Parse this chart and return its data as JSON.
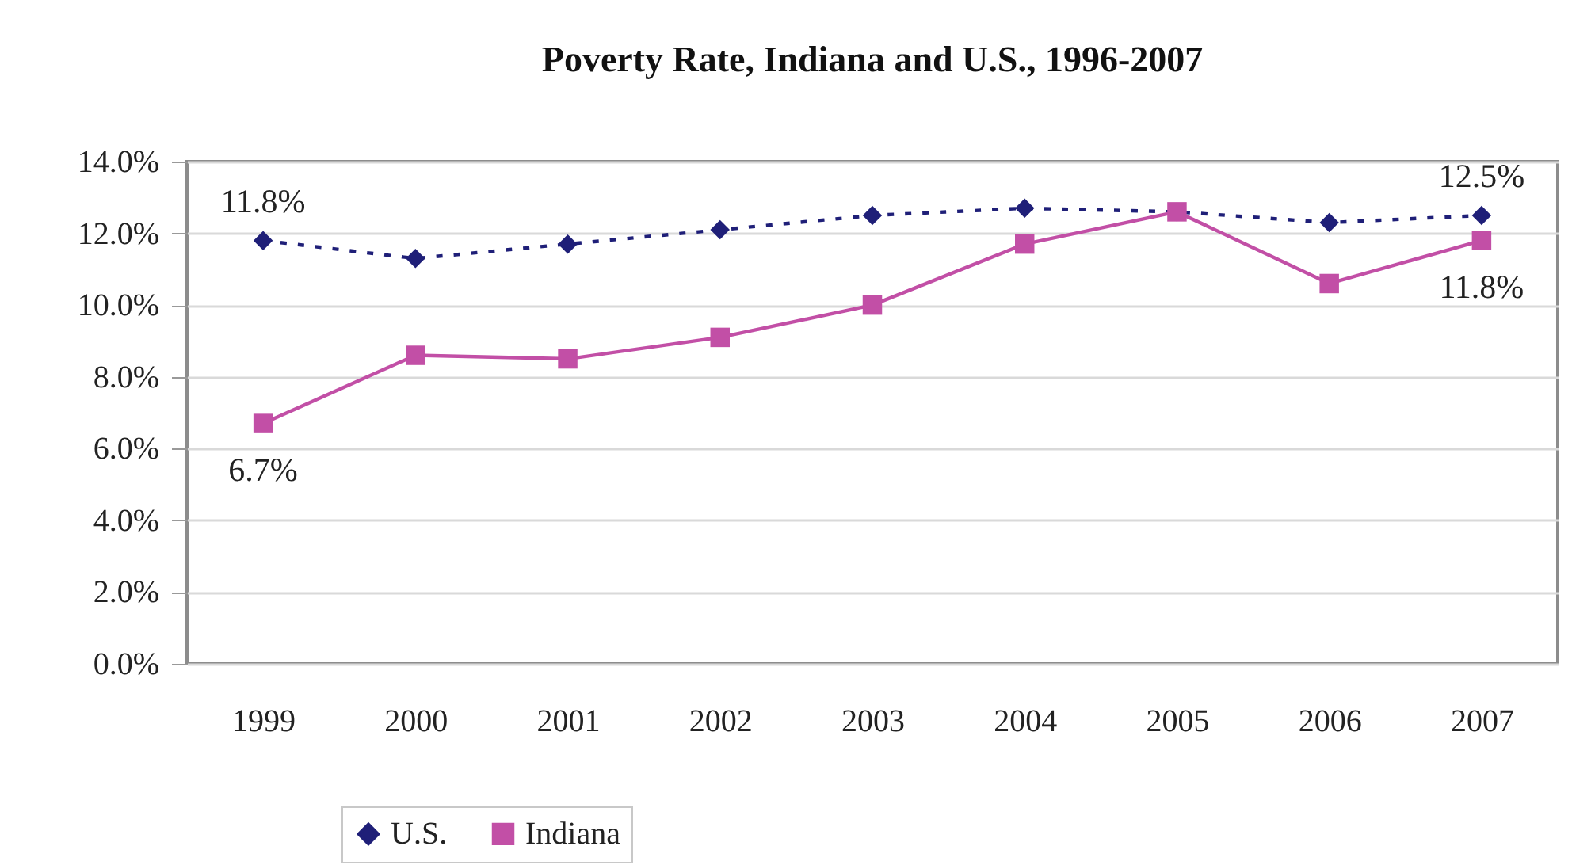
{
  "chart_data": {
    "type": "line",
    "title": "Poverty Rate, Indiana and U.S., 1996-2007",
    "categories": [
      "1999",
      "2000",
      "2001",
      "2002",
      "2003",
      "2004",
      "2005",
      "2006",
      "2007"
    ],
    "series": [
      {
        "name": "U.S.",
        "color": "#1f1f78",
        "marker": "diamond",
        "line_style": "dotted",
        "values": [
          11.8,
          11.3,
          11.7,
          12.1,
          12.5,
          12.7,
          12.6,
          12.3,
          12.5
        ],
        "value_labels": [
          "11.8%",
          null,
          null,
          null,
          null,
          null,
          null,
          null,
          "12.5%"
        ]
      },
      {
        "name": "Indiana",
        "color": "#c24fa6",
        "marker": "square",
        "line_style": "solid",
        "values": [
          6.7,
          8.6,
          8.5,
          9.1,
          10.0,
          11.7,
          12.6,
          10.6,
          11.8
        ],
        "value_labels": [
          "6.7%",
          null,
          null,
          null,
          null,
          null,
          null,
          null,
          "11.8%"
        ]
      }
    ],
    "ylim": [
      0,
      14
    ],
    "yticks": [
      {
        "value": 0,
        "label": "0.0%"
      },
      {
        "value": 2,
        "label": "2.0%"
      },
      {
        "value": 4,
        "label": "4.0%"
      },
      {
        "value": 6,
        "label": "6.0%"
      },
      {
        "value": 8,
        "label": "8.0%"
      },
      {
        "value": 10,
        "label": "10.0%"
      },
      {
        "value": 12,
        "label": "12.0%"
      },
      {
        "value": 14,
        "label": "14.0%"
      }
    ],
    "grid": "y",
    "legend": "bottom"
  }
}
